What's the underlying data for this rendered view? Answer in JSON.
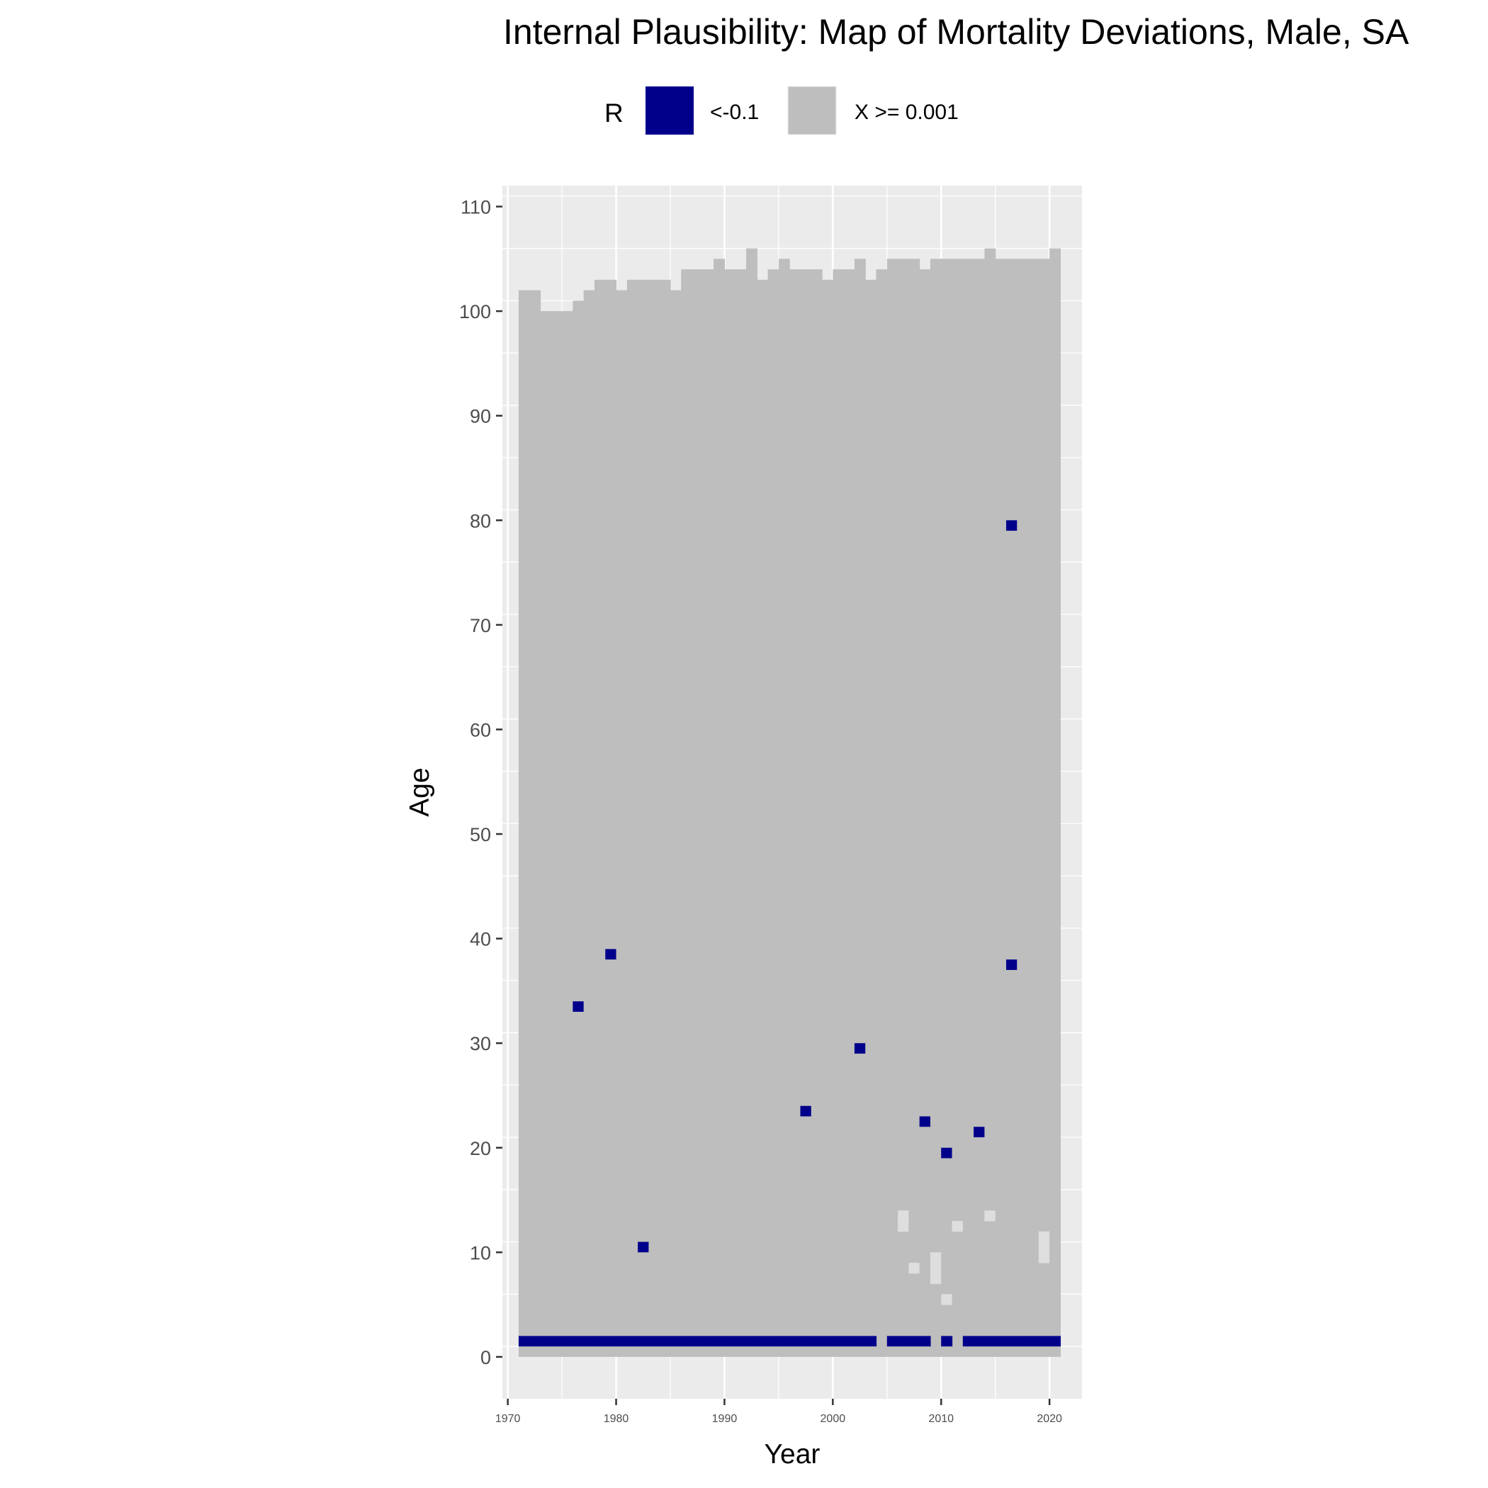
{
  "chart_data": {
    "type": "heatmap",
    "title": "Internal Plausibility: Map of Mortality Deviations, Male, SA",
    "xlabel": "Year",
    "ylabel": "Age",
    "xlim": [
      1969.5,
      2023
    ],
    "ylim": [
      -4,
      112
    ],
    "x_ticks": [
      1970,
      1980,
      1990,
      2000,
      2010,
      2020
    ],
    "y_ticks": [
      0,
      10,
      20,
      30,
      40,
      50,
      60,
      70,
      80,
      90,
      100,
      110
    ],
    "grid": true,
    "legend": {
      "title": "R",
      "position": "top",
      "entries": [
        {
          "label": "<-0.1",
          "color": "#00008b"
        },
        {
          "label": "X >= 0.001",
          "color": "#bebebe"
        }
      ]
    },
    "colors": {
      "panel": "#ebebeb",
      "grid": "#ffffff",
      "covered": "#bebebe",
      "deviation": "#00008b",
      "low_value": "#dedede"
    },
    "year_range": [
      1972,
      2021
    ],
    "max_age_by_year": [
      102,
      102,
      100,
      100,
      100,
      101,
      102,
      103,
      103,
      102,
      103,
      103,
      103,
      103,
      102,
      104,
      104,
      104,
      105,
      104,
      104,
      106,
      103,
      104,
      105,
      104,
      104,
      104,
      103,
      104,
      104,
      105,
      103,
      104,
      105,
      105,
      105,
      104,
      105,
      105,
      105,
      105,
      105,
      106,
      105,
      105,
      105,
      105,
      105,
      106
    ],
    "deviation_cells": [
      {
        "year": 1977,
        "age": 33
      },
      {
        "year": 1980,
        "age": 38
      },
      {
        "year": 1983,
        "age": 10
      },
      {
        "year": 1998,
        "age": 23
      },
      {
        "year": 2003,
        "age": 29
      },
      {
        "year": 2009,
        "age": 22
      },
      {
        "year": 2011,
        "age": 19
      },
      {
        "year": 2014,
        "age": 21
      },
      {
        "year": 2017,
        "age": 37
      },
      {
        "year": 2017,
        "age": 79
      }
    ],
    "deviation_rows": [
      {
        "age": 1,
        "years": [
          1972,
          1973,
          1974,
          1975,
          1976,
          1977,
          1978,
          1979,
          1980,
          1981,
          1982,
          1983,
          1984,
          1985,
          1986,
          1987,
          1988,
          1989,
          1990,
          1991,
          1992,
          1993,
          1994,
          1995,
          1996,
          1997,
          1998,
          1999,
          2000,
          2001,
          2002,
          2003,
          2004,
          2006,
          2007,
          2008,
          2009,
          2011,
          2013,
          2014,
          2015,
          2016,
          2017,
          2018,
          2019,
          2020,
          2021
        ]
      }
    ],
    "low_value_cells": [
      {
        "year": 2007,
        "age": 12
      },
      {
        "year": 2007,
        "age": 13
      },
      {
        "year": 2008,
        "age": 8
      },
      {
        "year": 2010,
        "age": 7
      },
      {
        "year": 2010,
        "age": 8
      },
      {
        "year": 2010,
        "age": 9
      },
      {
        "year": 2011,
        "age": 5
      },
      {
        "year": 2012,
        "age": 12
      },
      {
        "year": 2015,
        "age": 13
      },
      {
        "year": 2020,
        "age": 9
      },
      {
        "year": 2020,
        "age": 10
      },
      {
        "year": 2020,
        "age": 11
      }
    ]
  }
}
